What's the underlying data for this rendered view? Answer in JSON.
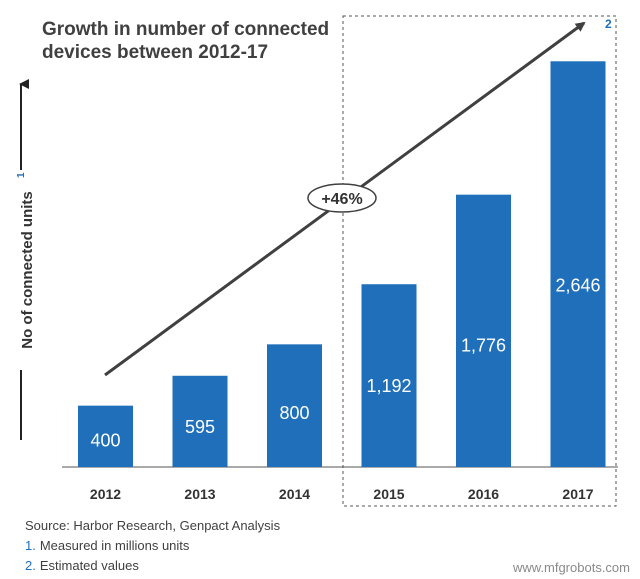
{
  "chart_data": {
    "type": "bar",
    "title": "Growth in number of connected devices between 2012-17",
    "categories": [
      "2012",
      "2013",
      "2014",
      "2015",
      "2016",
      "2017"
    ],
    "values": [
      400,
      595,
      800,
      1192,
      1776,
      2646
    ],
    "value_labels": [
      "400",
      "595",
      "800",
      "1,192",
      "1,776",
      "2,646"
    ],
    "ylabel": "No of connected units",
    "ylabel_superscript": "1",
    "estimated_marker": "2",
    "estimated_from": "2015",
    "growth_label": "+46%",
    "ylim": [
      0,
      2700
    ],
    "bar_color": "#1f6fba"
  },
  "footnotes": {
    "source": "Source: Harbor Research, Genpact Analysis",
    "notes": [
      {
        "num": "1.",
        "text": "Measured in millions units"
      },
      {
        "num": "2.",
        "text": "Estimated values"
      }
    ]
  },
  "watermark": "www.mfgrobots.com"
}
